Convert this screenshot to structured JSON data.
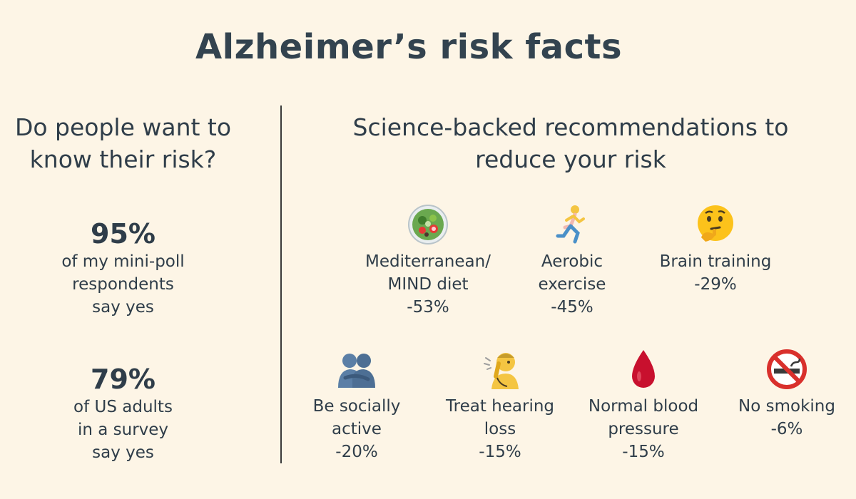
{
  "title": "Alzheimer’s risk facts",
  "left": {
    "heading_line1": "Do people want to",
    "heading_line2": "know their risk?",
    "stats": [
      {
        "value": "95%",
        "line1": "of my mini-poll",
        "line2": "respondents",
        "line3": "say yes"
      },
      {
        "value": "79%",
        "line1": "of US adults",
        "line2": "in a survey",
        "line3": "say yes"
      }
    ]
  },
  "right": {
    "heading_line1": "Science-backed recommendations to",
    "heading_line2": "reduce your risk",
    "recommendations": [
      {
        "icon": "salad-icon",
        "line1": "Mediterranean/",
        "line2": "MIND diet",
        "effect": "-53%"
      },
      {
        "icon": "runner-icon",
        "line1": "Aerobic",
        "line2": "exercise",
        "effect": "-45%"
      },
      {
        "icon": "thinking-face-icon",
        "line1": "Brain training",
        "line2": "",
        "effect": "-29%"
      },
      {
        "icon": "people-hugging-icon",
        "line1": "Be socially",
        "line2": "active",
        "effect": "-20%"
      },
      {
        "icon": "hearing-person-icon",
        "line1": "Treat hearing",
        "line2": "loss",
        "effect": "-15%"
      },
      {
        "icon": "blood-drop-icon",
        "line1": "Normal blood",
        "line2": "pressure",
        "effect": "-15%"
      },
      {
        "icon": "no-smoking-icon",
        "line1": "No smoking",
        "line2": "",
        "effect": "-6%"
      }
    ]
  },
  "colors": {
    "background": "#fdf5e6",
    "text": "#2f3d49",
    "blood": "#c8102e",
    "no_smoking": "#d9302c"
  }
}
